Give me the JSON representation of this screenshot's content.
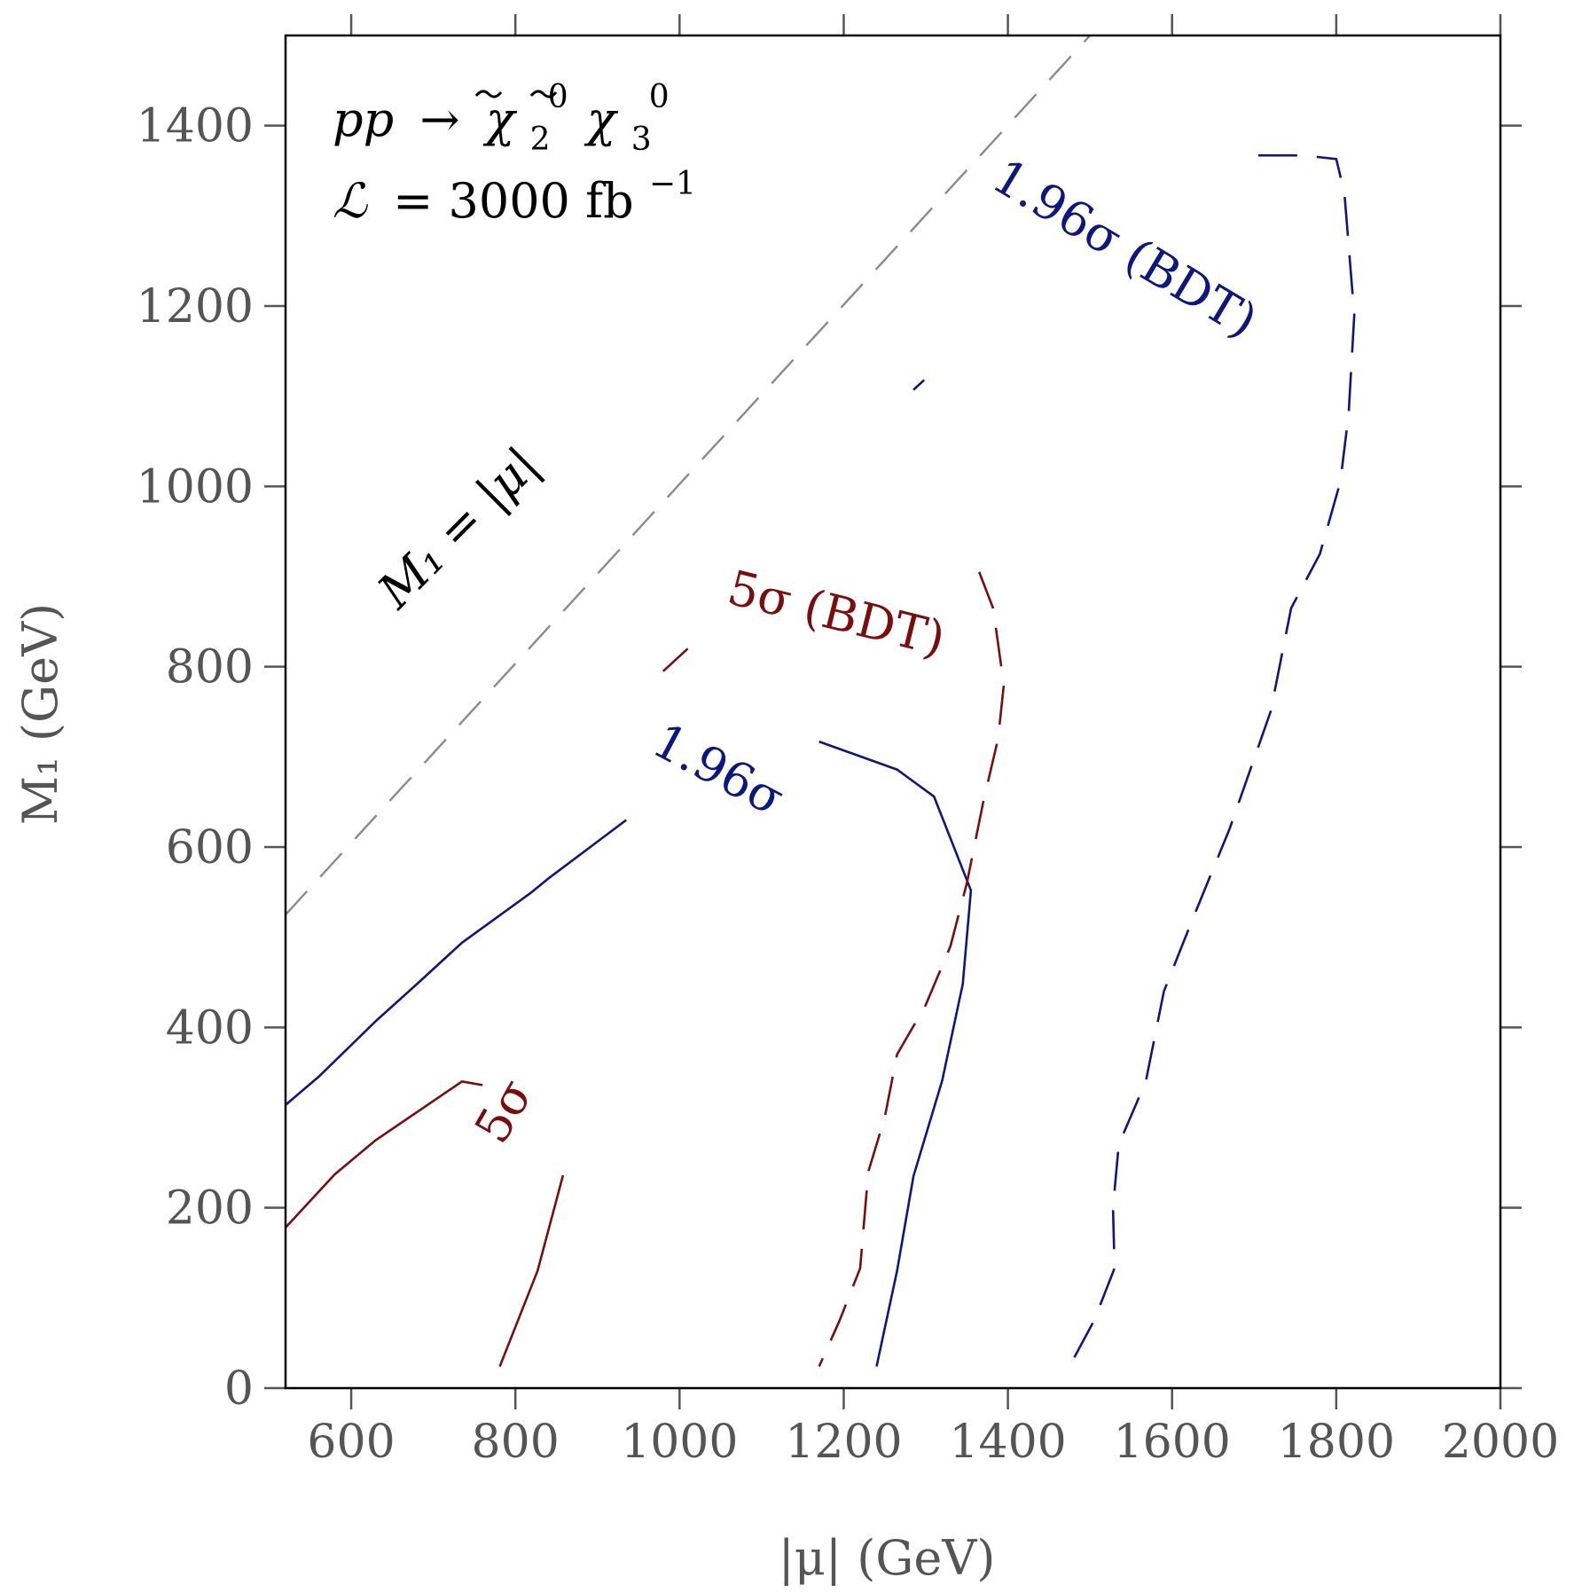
{
  "chart_data": {
    "type": "line",
    "xlabel": "|μ| (GeV)",
    "ylabel": "M₁ (GeV)",
    "xlim": [
      520,
      2000
    ],
    "ylim": [
      0,
      1500
    ],
    "xticks": [
      600,
      800,
      1000,
      1200,
      1400,
      1600,
      1800,
      2000
    ],
    "yticks": [
      0,
      200,
      400,
      600,
      800,
      1000,
      1200,
      1400
    ],
    "grid": false,
    "colors": {
      "red": "#7b0d0d",
      "blue": "#0d1780",
      "gray": "#8a8a8a",
      "text": "#555555"
    },
    "annotations": {
      "process_prefix": "pp",
      "process_arrow": "→",
      "chi": "χ",
      "chi_sup": "0",
      "chi_sub_a": "2",
      "chi_sub_b": "3",
      "lumi_symbol": "ℒ",
      "lumi_text": "= 3000 fb",
      "lumi_exp": "−1",
      "diag_label": "M₁ = |μ|"
    },
    "series": [
      {
        "name": "5σ",
        "style": "solid",
        "color": "red",
        "segments": [
          [
            [
              520,
              178
            ],
            [
              580,
              237
            ],
            [
              630,
              275
            ],
            [
              735,
              340
            ],
            [
              760,
              336
            ]
          ],
          [
            [
              858,
              236
            ],
            [
              827,
              130
            ],
            [
              781,
              24
            ]
          ]
        ]
      },
      {
        "name": "1.96σ",
        "style": "solid",
        "color": "blue",
        "segments": [
          [
            [
              520,
              314
            ],
            [
              560,
              345
            ],
            [
              630,
              407
            ],
            [
              680,
              448
            ],
            [
              735,
              494
            ],
            [
              820,
              550
            ],
            [
              840,
              565
            ],
            [
              935,
              630
            ]
          ],
          [
            [
              1170,
              717
            ],
            [
              1265,
              686
            ],
            [
              1310,
              656
            ],
            [
              1355,
              552
            ],
            [
              1345,
              448
            ],
            [
              1320,
              341
            ],
            [
              1285,
              235
            ],
            [
              1265,
              130
            ],
            [
              1240,
              24
            ]
          ]
        ]
      },
      {
        "name": "5σ (BDT)",
        "style": "dashed",
        "color": "red",
        "segments": [
          [
            [
              980,
              795
            ],
            [
              1010,
              820
            ]
          ],
          [
            [
              1365,
              905
            ],
            [
              1382,
              865
            ],
            [
              1395,
              780
            ],
            [
              1388,
              720
            ],
            [
              1370,
              650
            ],
            [
              1350,
              560
            ],
            [
              1330,
              490
            ],
            [
              1300,
              425
            ],
            [
              1265,
              370
            ],
            [
              1250,
              300
            ],
            [
              1230,
              240
            ],
            [
              1220,
              133
            ],
            [
              1195,
              75
            ],
            [
              1170,
              24
            ]
          ]
        ]
      },
      {
        "name": "1.96σ (BDT)",
        "style": "dashed",
        "color": "blue",
        "segments": [
          [
            [
              1285,
              1107
            ],
            [
              1298,
              1118
            ]
          ],
          [
            [
              1705,
              1367
            ],
            [
              1760,
              1367
            ],
            [
              1800,
              1363
            ],
            [
              1810,
              1325
            ],
            [
              1822,
              1190
            ],
            [
              1815,
              1080
            ],
            [
              1805,
              1005
            ],
            [
              1780,
              925
            ],
            [
              1745,
              865
            ],
            [
              1720,
              750
            ],
            [
              1670,
              620
            ],
            [
              1625,
              520
            ],
            [
              1590,
              440
            ],
            [
              1568,
              340
            ],
            [
              1535,
              270
            ],
            [
              1528,
              200
            ],
            [
              1530,
              133
            ],
            [
              1505,
              75
            ],
            [
              1475,
              24
            ]
          ]
        ]
      },
      {
        "name": "M₁ = |μ|",
        "style": "dashed",
        "color": "gray",
        "segments": [
          [
            [
              520,
              525
            ],
            [
              1500,
              1500
            ]
          ]
        ]
      }
    ],
    "curve_labels": [
      {
        "text": "5σ",
        "color": "red",
        "x": 790,
        "y": 305,
        "rotate": 60
      },
      {
        "text": "1.96σ",
        "color": "blue",
        "x": 1045,
        "y": 682,
        "rotate": -28
      },
      {
        "text": "5σ (BDT)",
        "color": "red",
        "x": 1190,
        "y": 855,
        "rotate": -14
      },
      {
        "text": "1.96σ (BDT)",
        "color": "blue",
        "x": 1540,
        "y": 1260,
        "rotate": -31
      }
    ]
  }
}
